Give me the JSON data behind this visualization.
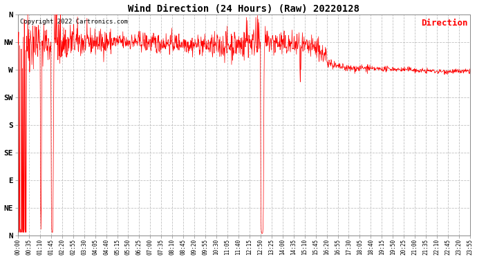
{
  "title": "Wind Direction (24 Hours) (Raw) 20220128",
  "copyright_text": "Copyright 2022 Cartronics.com",
  "legend_label": "Direction",
  "legend_color": "#ff0000",
  "line_color": "#ff0000",
  "background_color": "#ffffff",
  "grid_color": "#c0c0c0",
  "ytick_labels": [
    "N",
    "NW",
    "W",
    "SW",
    "S",
    "SE",
    "E",
    "NE",
    "N"
  ],
  "ytick_values": [
    360,
    315,
    270,
    225,
    180,
    135,
    90,
    45,
    0
  ],
  "ylim": [
    0,
    360
  ],
  "xlim_minutes": [
    0,
    1435
  ],
  "xtick_positions_minutes": [
    0,
    35,
    70,
    105,
    140,
    175,
    210,
    245,
    280,
    315,
    350,
    385,
    420,
    455,
    490,
    525,
    560,
    595,
    630,
    665,
    700,
    735,
    770,
    805,
    840,
    875,
    910,
    945,
    980,
    1015,
    1050,
    1085,
    1120,
    1155,
    1190,
    1225,
    1260,
    1295,
    1330,
    1365,
    1400,
    1435
  ],
  "xtick_labels": [
    "00:00",
    "00:35",
    "01:10",
    "01:45",
    "02:20",
    "02:55",
    "03:30",
    "04:05",
    "04:40",
    "05:15",
    "05:50",
    "06:25",
    "07:00",
    "07:35",
    "08:10",
    "08:45",
    "09:20",
    "09:55",
    "10:30",
    "11:05",
    "11:40",
    "12:15",
    "12:50",
    "13:25",
    "14:00",
    "14:35",
    "15:10",
    "15:45",
    "16:20",
    "16:55",
    "17:30",
    "18:05",
    "18:40",
    "19:15",
    "19:50",
    "20:25",
    "21:00",
    "21:35",
    "22:10",
    "22:45",
    "23:20",
    "23:55"
  ],
  "seed": 42,
  "figsize": [
    6.9,
    3.75
  ],
  "dpi": 100
}
